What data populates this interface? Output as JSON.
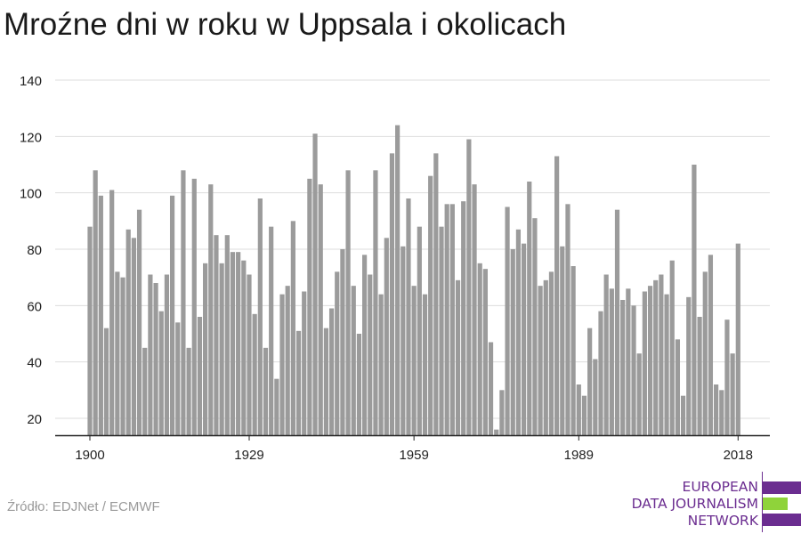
{
  "title": "Mroźne dni w roku w Uppsala i okolicach",
  "source": "Źródło: EDJNet / ECMWF",
  "logo": {
    "lines": [
      "EUROPEAN",
      "DATA JOURNALISM",
      "NETWORK"
    ],
    "colors": {
      "purple": "#6b2d90",
      "green": "#8fd33a"
    }
  },
  "colors": {
    "bar": "#9b9b9b",
    "grid": "#dddddd",
    "axis": "#222222",
    "text": "#222222"
  },
  "chart_data": {
    "type": "bar",
    "x_start": 1900,
    "x_ticks": [
      1900,
      1929,
      1959,
      1989,
      2018
    ],
    "y_ticks": [
      20,
      40,
      60,
      80,
      100,
      120,
      140
    ],
    "ylim": [
      14,
      140
    ],
    "values": [
      88,
      108,
      99,
      52,
      101,
      72,
      70,
      87,
      84,
      94,
      45,
      71,
      68,
      58,
      71,
      99,
      54,
      108,
      45,
      105,
      56,
      75,
      103,
      85,
      75,
      85,
      79,
      79,
      76,
      71,
      57,
      98,
      45,
      88,
      34,
      64,
      67,
      90,
      51,
      65,
      105,
      121,
      103,
      52,
      59,
      72,
      80,
      108,
      67,
      50,
      78,
      71,
      108,
      64,
      84,
      114,
      124,
      81,
      98,
      67,
      88,
      64,
      106,
      114,
      88,
      96,
      96,
      69,
      97,
      119,
      103,
      75,
      73,
      47,
      16,
      30,
      95,
      80,
      87,
      82,
      104,
      91,
      67,
      69,
      72,
      113,
      81,
      96,
      74,
      32,
      28,
      52,
      41,
      58,
      71,
      66,
      94,
      62,
      66,
      60,
      43,
      65,
      67,
      69,
      71,
      64,
      76,
      48,
      28,
      63,
      110,
      56,
      72,
      78,
      32,
      30,
      55,
      43,
      82
    ]
  }
}
